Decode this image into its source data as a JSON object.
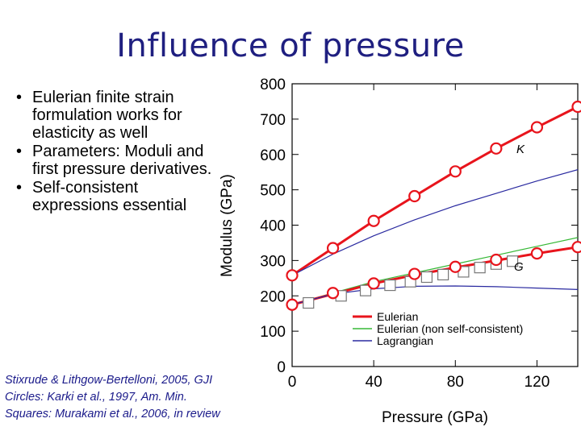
{
  "slide": {
    "title": "Influence of pressure",
    "bullets": [
      "Eulerian finite strain formulation works for elasticity as well",
      "Parameters: Moduli and first pressure derivatives.",
      "Self-consistent expressions essential"
    ],
    "citations": [
      "Stixrude & Lithgow-Bertelloni, 2005, GJI",
      "Circles: Karki et al., 1997, Am. Min.",
      "Squares: Murakami et al., 2006, in review"
    ]
  },
  "chart_data": {
    "type": "line",
    "xlabel": "Pressure (GPa)",
    "ylabel": "Modulus (GPa)",
    "xlim": [
      0,
      140
    ],
    "ylim": [
      0,
      800
    ],
    "xticks": [
      0,
      40,
      80,
      120
    ],
    "yticks": [
      0,
      100,
      200,
      300,
      400,
      500,
      600,
      700,
      800
    ],
    "labels": {
      "K": "K",
      "G": "G"
    },
    "legend": [
      {
        "name": "Eulerian",
        "color": "#e8141c"
      },
      {
        "name": "Eulerian (non self-consistent)",
        "color": "#36b836"
      },
      {
        "name": "Lagrangian",
        "color": "#2a2aa0"
      }
    ],
    "lines": [
      {
        "series": "Eulerian",
        "property": "K",
        "color": "#e8141c",
        "x": [
          0,
          20,
          40,
          60,
          80,
          100,
          120,
          140
        ],
        "y": [
          258,
          335,
          412,
          482,
          552,
          617,
          677,
          735
        ]
      },
      {
        "series": "Lagrangian",
        "property": "K",
        "color": "#2a2aa0",
        "x": [
          0,
          20,
          40,
          60,
          80,
          100,
          120,
          140
        ],
        "y": [
          258,
          318,
          370,
          415,
          455,
          490,
          525,
          557
        ]
      },
      {
        "series": "Eulerian (non self-consistent)",
        "property": "G",
        "color": "#36b836",
        "x": [
          0,
          20,
          40,
          60,
          80,
          100,
          120,
          140
        ],
        "y": [
          175,
          208,
          240,
          265,
          290,
          315,
          340,
          365
        ]
      },
      {
        "series": "Eulerian",
        "property": "G",
        "color": "#e8141c",
        "x": [
          0,
          20,
          40,
          60,
          80,
          100,
          120,
          140
        ],
        "y": [
          175,
          205,
          235,
          259,
          280,
          300,
          320,
          338
        ]
      },
      {
        "series": "Lagrangian",
        "property": "G",
        "color": "#2a2aa0",
        "x": [
          0,
          20,
          40,
          60,
          80,
          100,
          120,
          140
        ],
        "y": [
          175,
          205,
          220,
          227,
          228,
          226,
          222,
          218
        ]
      }
    ],
    "circles": {
      "label": "Circles: Karki et al., 1997, Am. Min.",
      "K": {
        "x": [
          0,
          20,
          40,
          60,
          80,
          100,
          120,
          140
        ],
        "y": [
          258,
          335,
          412,
          482,
          552,
          617,
          677,
          735
        ]
      },
      "G": {
        "x": [
          0,
          20,
          40,
          60,
          80,
          100,
          120,
          140
        ],
        "y": [
          175,
          208,
          235,
          262,
          282,
          302,
          320,
          338
        ]
      }
    },
    "squares": {
      "label": "Squares: Murakami et al., 2006, in review",
      "x": [
        8,
        24,
        36,
        48,
        58,
        66,
        74,
        84,
        92,
        100,
        108
      ],
      "y": [
        180,
        200,
        215,
        230,
        240,
        253,
        260,
        268,
        280,
        290,
        298
      ]
    }
  }
}
